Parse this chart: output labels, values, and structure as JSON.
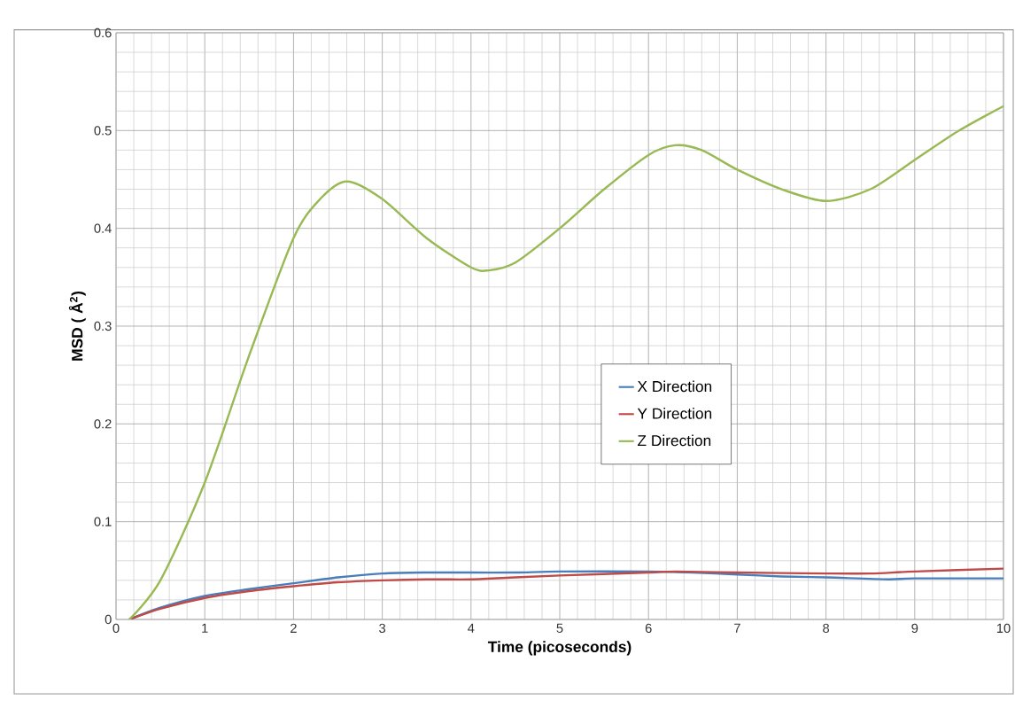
{
  "chart_data": {
    "type": "line",
    "xlabel": "Time (picoseconds)",
    "ylabel": "MSD ( Å$^{2}$)",
    "xlim": [
      0,
      10
    ],
    "ylim": [
      0,
      0.6
    ],
    "xticks": [
      0,
      1,
      2,
      3,
      4,
      5,
      6,
      7,
      8,
      9,
      10
    ],
    "yticks": [
      0,
      0.1,
      0.2,
      0.3,
      0.4,
      0.5,
      0.6
    ],
    "grid": true,
    "legend": "center",
    "marker": "none",
    "line_style": "solid",
    "series": [
      {
        "name": "X Direction",
        "color": "#4a7ebb",
        "x": [
          0.15,
          0.5,
          1,
          1.5,
          2,
          2.5,
          3,
          3.5,
          4,
          4.5,
          5,
          6,
          6.5,
          7,
          7.5,
          8,
          8.7,
          9,
          10
        ],
        "values": [
          0,
          0.012,
          0.024,
          0.031,
          0.037,
          0.043,
          0.047,
          0.048,
          0.048,
          0.048,
          0.049,
          0.049,
          0.048,
          0.046,
          0.044,
          0.043,
          0.041,
          0.042,
          0.042
        ]
      },
      {
        "name": "Y Direction",
        "color": "#be4b48",
        "x": [
          0.15,
          0.5,
          1,
          1.5,
          2,
          2.5,
          3,
          3.5,
          4,
          4.5,
          5,
          6,
          6.3,
          7,
          8,
          8.5,
          9,
          10
        ],
        "values": [
          0,
          0.011,
          0.022,
          0.029,
          0.034,
          0.038,
          0.04,
          0.041,
          0.041,
          0.043,
          0.045,
          0.048,
          0.049,
          0.048,
          0.047,
          0.047,
          0.049,
          0.052
        ]
      },
      {
        "name": "Z Direction",
        "color": "#98b954",
        "x": [
          0.15,
          0.5,
          1,
          1.5,
          2,
          2.3,
          2.6,
          3,
          3.5,
          4,
          4.2,
          4.5,
          5,
          5.5,
          6,
          6.3,
          6.6,
          7,
          7.5,
          8,
          8.5,
          9,
          9.5,
          10
        ],
        "values": [
          0,
          0.04,
          0.14,
          0.27,
          0.39,
          0.43,
          0.448,
          0.43,
          0.39,
          0.36,
          0.357,
          0.365,
          0.4,
          0.44,
          0.475,
          0.485,
          0.48,
          0.46,
          0.44,
          0.428,
          0.44,
          0.47,
          0.5,
          0.525
        ]
      }
    ]
  }
}
